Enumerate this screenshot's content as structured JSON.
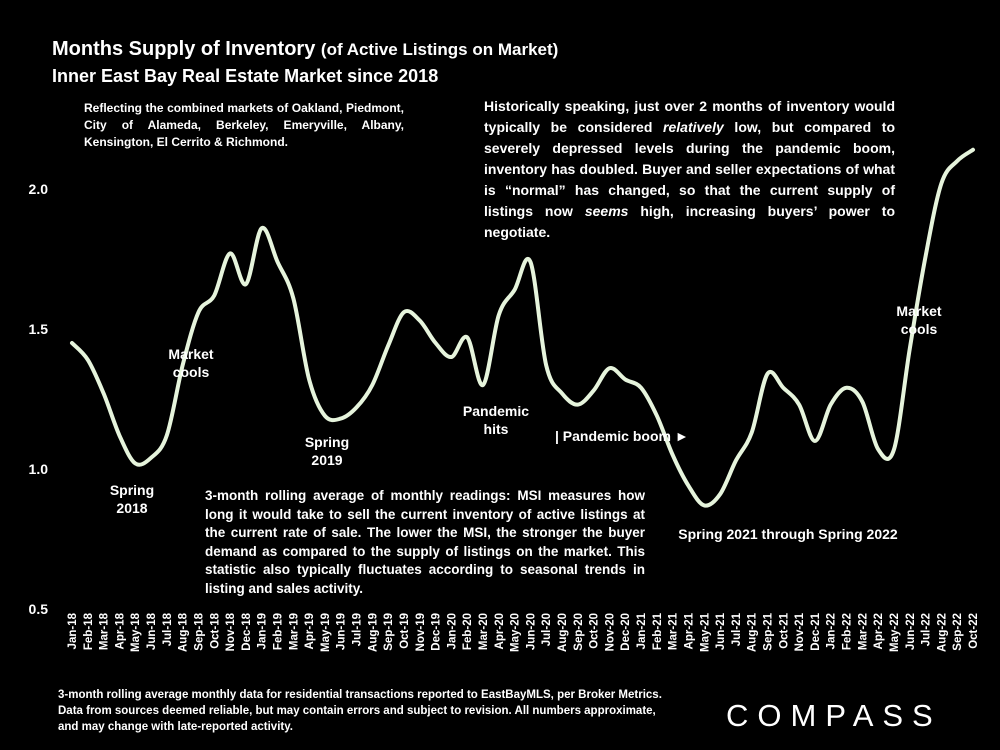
{
  "header": {
    "title": "Months Supply of Inventory",
    "title_suffix": "(of Active Listings on Market)",
    "subtitle": "Inner East Bay Real Estate Market since 2018"
  },
  "notes": {
    "markets": "Reflecting the combined markets of Oakland, Piedmont, City of Alameda, Berkeley, Emeryville, Albany, Kensington, El Cerrito & Richmond.",
    "history_1": "Historically speaking, just over 2 months of inventory would typically be considered ",
    "history_em1": "relatively",
    "history_2": " low, but compared to severely depressed levels during the pandemic boom, inventory has doubled. Buyer and seller expectations of what is “normal” has changed, so that the current supply of listings now ",
    "history_em2": "seems",
    "history_3": " high, increasing buyers’ power to negotiate.",
    "msi": "3-month rolling average of monthly readings: MSI measures how long it would take to sell the current inventory of active listings at the current rate of sale. The lower the MSI, the stronger the buyer demand as compared to the supply of listings on the market. This statistic also typically fluctuates according to seasonal trends in listing and sales activity.",
    "footer": "3-month rolling average monthly data for residential transactions reported to EastBayMLS, per Broker Metrics. Data from sources deemed reliable, but may contain errors and subject to revision. All numbers approximate, and may change with late-reported activity."
  },
  "annotations": {
    "spring_2018_l1": "Spring",
    "spring_2018_l2": "2018",
    "market_cools_1_l1": "Market",
    "market_cools_1_l2": "cools",
    "spring_2019_l1": "Spring",
    "spring_2019_l2": "2019",
    "pandemic_hits_l1": "Pandemic",
    "pandemic_hits_l2": "hits",
    "pandemic_boom": "| Pandemic boom ►",
    "spring_2021_2022": "Spring 2021 through Spring 2022",
    "market_cools_2_l1": "Market",
    "market_cools_2_l2": "cools"
  },
  "logo": "COMPASS",
  "colors": {
    "background": "#000000",
    "line": "#e6f4dc",
    "text": "#ffffff"
  },
  "chart_data": {
    "type": "line",
    "title": "Months Supply of Inventory (of Active Listings on Market)",
    "xlabel": "",
    "ylabel": "",
    "ylim": [
      0.5,
      2.25
    ],
    "yticks": [
      0.5,
      1.0,
      1.5,
      2.0
    ],
    "ytick_labels": [
      "0.5",
      "1.0",
      "1.5",
      "2.0"
    ],
    "grid": false,
    "categories": [
      "Jan-18",
      "Feb-18",
      "Mar-18",
      "Apr-18",
      "May-18",
      "Jun-18",
      "Jul-18",
      "Aug-18",
      "Sep-18",
      "Oct-18",
      "Nov-18",
      "Dec-18",
      "Jan-19",
      "Feb-19",
      "Mar-19",
      "Apr-19",
      "May-19",
      "Jun-19",
      "Jul-19",
      "Aug-19",
      "Sep-19",
      "Oct-19",
      "Nov-19",
      "Dec-19",
      "Jan-20",
      "Feb-20",
      "Mar-20",
      "Apr-20",
      "May-20",
      "Jun-20",
      "Jul-20",
      "Aug-20",
      "Sep-20",
      "Oct-20",
      "Nov-20",
      "Dec-20",
      "Jan-21",
      "Feb-21",
      "Mar-21",
      "Apr-21",
      "May-21",
      "Jun-21",
      "Jul-21",
      "Aug-21",
      "Sep-21",
      "Oct-21",
      "Nov-21",
      "Dec-21",
      "Jan-22",
      "Feb-22",
      "Mar-22",
      "Apr-22",
      "May-22",
      "Jun-22",
      "Jul-22",
      "Aug-22",
      "Sep-22",
      "Oct-22"
    ],
    "series": [
      {
        "name": "MSI (3-month rolling average)",
        "values": [
          1.45,
          1.39,
          1.27,
          1.12,
          1.02,
          1.04,
          1.12,
          1.37,
          1.56,
          1.62,
          1.77,
          1.66,
          1.86,
          1.74,
          1.61,
          1.32,
          1.19,
          1.18,
          1.22,
          1.3,
          1.44,
          1.56,
          1.53,
          1.45,
          1.4,
          1.47,
          1.3,
          1.55,
          1.64,
          1.74,
          1.37,
          1.27,
          1.23,
          1.28,
          1.36,
          1.32,
          1.29,
          1.19,
          1.05,
          0.94,
          0.87,
          0.91,
          1.03,
          1.13,
          1.34,
          1.29,
          1.23,
          1.1,
          1.23,
          1.29,
          1.24,
          1.07,
          1.07,
          1.43,
          1.76,
          2.02,
          2.1,
          2.14
        ]
      }
    ]
  }
}
